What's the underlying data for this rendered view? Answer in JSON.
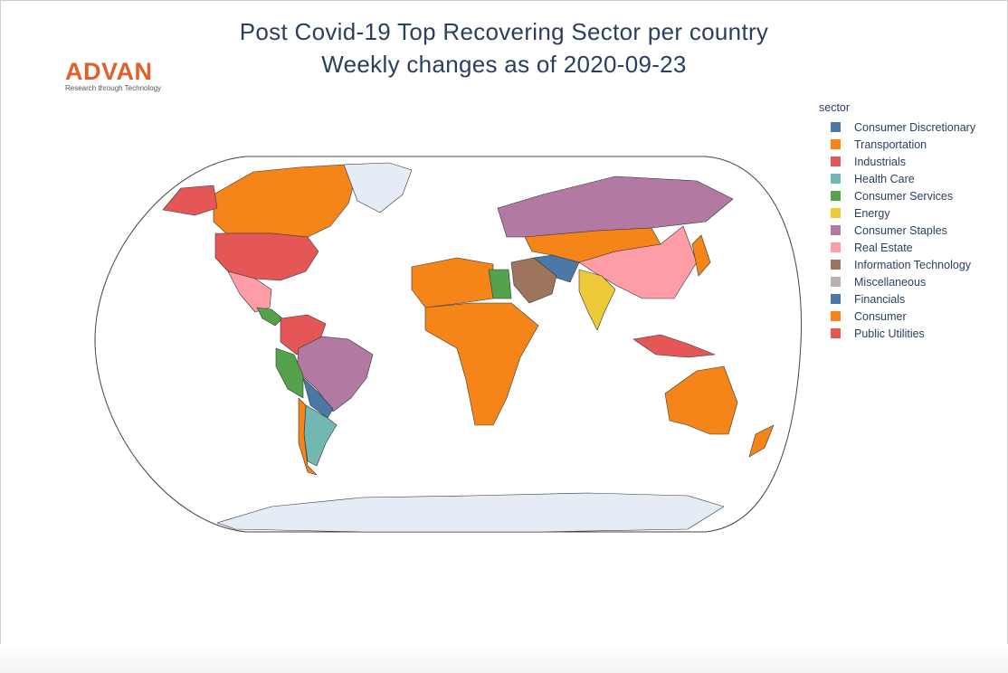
{
  "title": {
    "line1": "Post Covid-19 Top Recovering Sector per country",
    "line2": "Weekly changes as of 2020-09-23"
  },
  "logo": {
    "word": "ADVAN",
    "tagline": "Research through Technology"
  },
  "legend": {
    "title": "sector",
    "items": [
      {
        "label": "Consumer Discretionary",
        "color": "#4c78a8"
      },
      {
        "label": "Transportation",
        "color": "#f58518"
      },
      {
        "label": "Industrials",
        "color": "#e45756"
      },
      {
        "label": "Health Care",
        "color": "#72b7b2"
      },
      {
        "label": "Consumer Services",
        "color": "#54a24b"
      },
      {
        "label": "Energy",
        "color": "#eeca3b"
      },
      {
        "label": "Consumer Staples",
        "color": "#b279a2"
      },
      {
        "label": "Real Estate",
        "color": "#ff9da6"
      },
      {
        "label": "Information Technology",
        "color": "#9d755d"
      },
      {
        "label": "Miscellaneous",
        "color": "#bab0ac"
      },
      {
        "label": "Financials",
        "color": "#4c78a8"
      },
      {
        "label": "Consumer",
        "color": "#f58518"
      },
      {
        "label": "Public Utilities",
        "color": "#e45756"
      }
    ]
  },
  "map": {
    "projection": "natural earth",
    "no_data_color": "#e5ecf6",
    "countries": [
      {
        "region": "Canada",
        "sector": "Transportation"
      },
      {
        "region": "Alaska",
        "sector": "Public Utilities"
      },
      {
        "region": "United States",
        "sector": "Public Utilities"
      },
      {
        "region": "Mexico",
        "sector": "Real Estate"
      },
      {
        "region": "Central America",
        "sector": "Consumer Services"
      },
      {
        "region": "Colombia-Venezuela",
        "sector": "Industrials"
      },
      {
        "region": "Brazil",
        "sector": "Consumer Staples"
      },
      {
        "region": "Peru-Ecuador",
        "sector": "Consumer Services"
      },
      {
        "region": "Bolivia-Paraguay",
        "sector": "Financials"
      },
      {
        "region": "Argentina",
        "sector": "Health Care"
      },
      {
        "region": "Chile",
        "sector": "Transportation"
      },
      {
        "region": "Russia",
        "sector": "Consumer Staples"
      },
      {
        "region": "Kazakhstan-Mongolia",
        "sector": "Transportation"
      },
      {
        "region": "China",
        "sector": "Real Estate"
      },
      {
        "region": "India",
        "sector": "Energy"
      },
      {
        "region": "Iran",
        "sector": "Financials"
      },
      {
        "region": "Saudi Arabia",
        "sector": "Information Technology"
      },
      {
        "region": "North Africa",
        "sector": "Transportation"
      },
      {
        "region": "Central Africa",
        "sector": "Transportation"
      },
      {
        "region": "Egypt",
        "sector": "Consumer Services"
      },
      {
        "region": "Australia",
        "sector": "Transportation"
      },
      {
        "region": "New Zealand",
        "sector": "Transportation"
      },
      {
        "region": "Indonesia",
        "sector": "Public Utilities"
      },
      {
        "region": "Japan",
        "sector": "Transportation"
      },
      {
        "region": "Greenland",
        "sector": ""
      },
      {
        "region": "Antarctica",
        "sector": ""
      }
    ]
  }
}
